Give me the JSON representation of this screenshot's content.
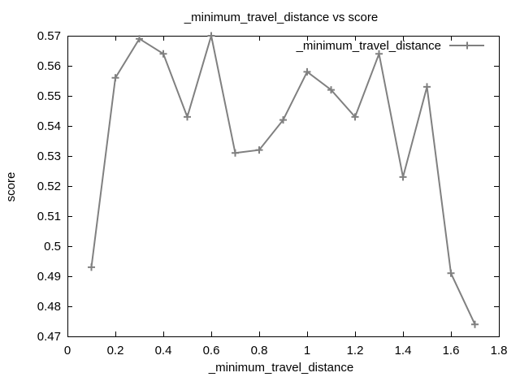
{
  "chart_data": {
    "type": "line",
    "title": "_minimum_travel_distance vs score",
    "xlabel": "_minimum_travel_distance",
    "ylabel": "score",
    "xlim": [
      0,
      1.8
    ],
    "ylim": [
      0.47,
      0.57
    ],
    "xticks": [
      0,
      0.2,
      0.4,
      0.6,
      0.8,
      1,
      1.2,
      1.4,
      1.6,
      1.8
    ],
    "xtick_labels": [
      "0",
      "0.2",
      "0.4",
      "0.6",
      "0.8",
      "1",
      "1.2",
      "1.4",
      "1.6",
      "1.8"
    ],
    "yticks": [
      0.47,
      0.48,
      0.49,
      0.5,
      0.51,
      0.52,
      0.53,
      0.54,
      0.55,
      0.56,
      0.57
    ],
    "ytick_labels": [
      "0.47",
      "0.48",
      "0.49",
      "0.5",
      "0.51",
      "0.52",
      "0.53",
      "0.54",
      "0.55",
      "0.56",
      "0.57"
    ],
    "grid": false,
    "legend_position": "top-right",
    "series": [
      {
        "name": "_minimum_travel_distance",
        "color": "#808080",
        "marker": "plus",
        "x": [
          0.1,
          0.2,
          0.3,
          0.4,
          0.5,
          0.6,
          0.7,
          0.8,
          0.9,
          1.0,
          1.1,
          1.2,
          1.3,
          1.4,
          1.5,
          1.6,
          1.7
        ],
        "y": [
          0.493,
          0.556,
          0.569,
          0.564,
          0.543,
          0.57,
          0.531,
          0.532,
          0.542,
          0.558,
          0.552,
          0.543,
          0.564,
          0.523,
          0.553,
          0.491,
          0.474
        ]
      }
    ]
  }
}
